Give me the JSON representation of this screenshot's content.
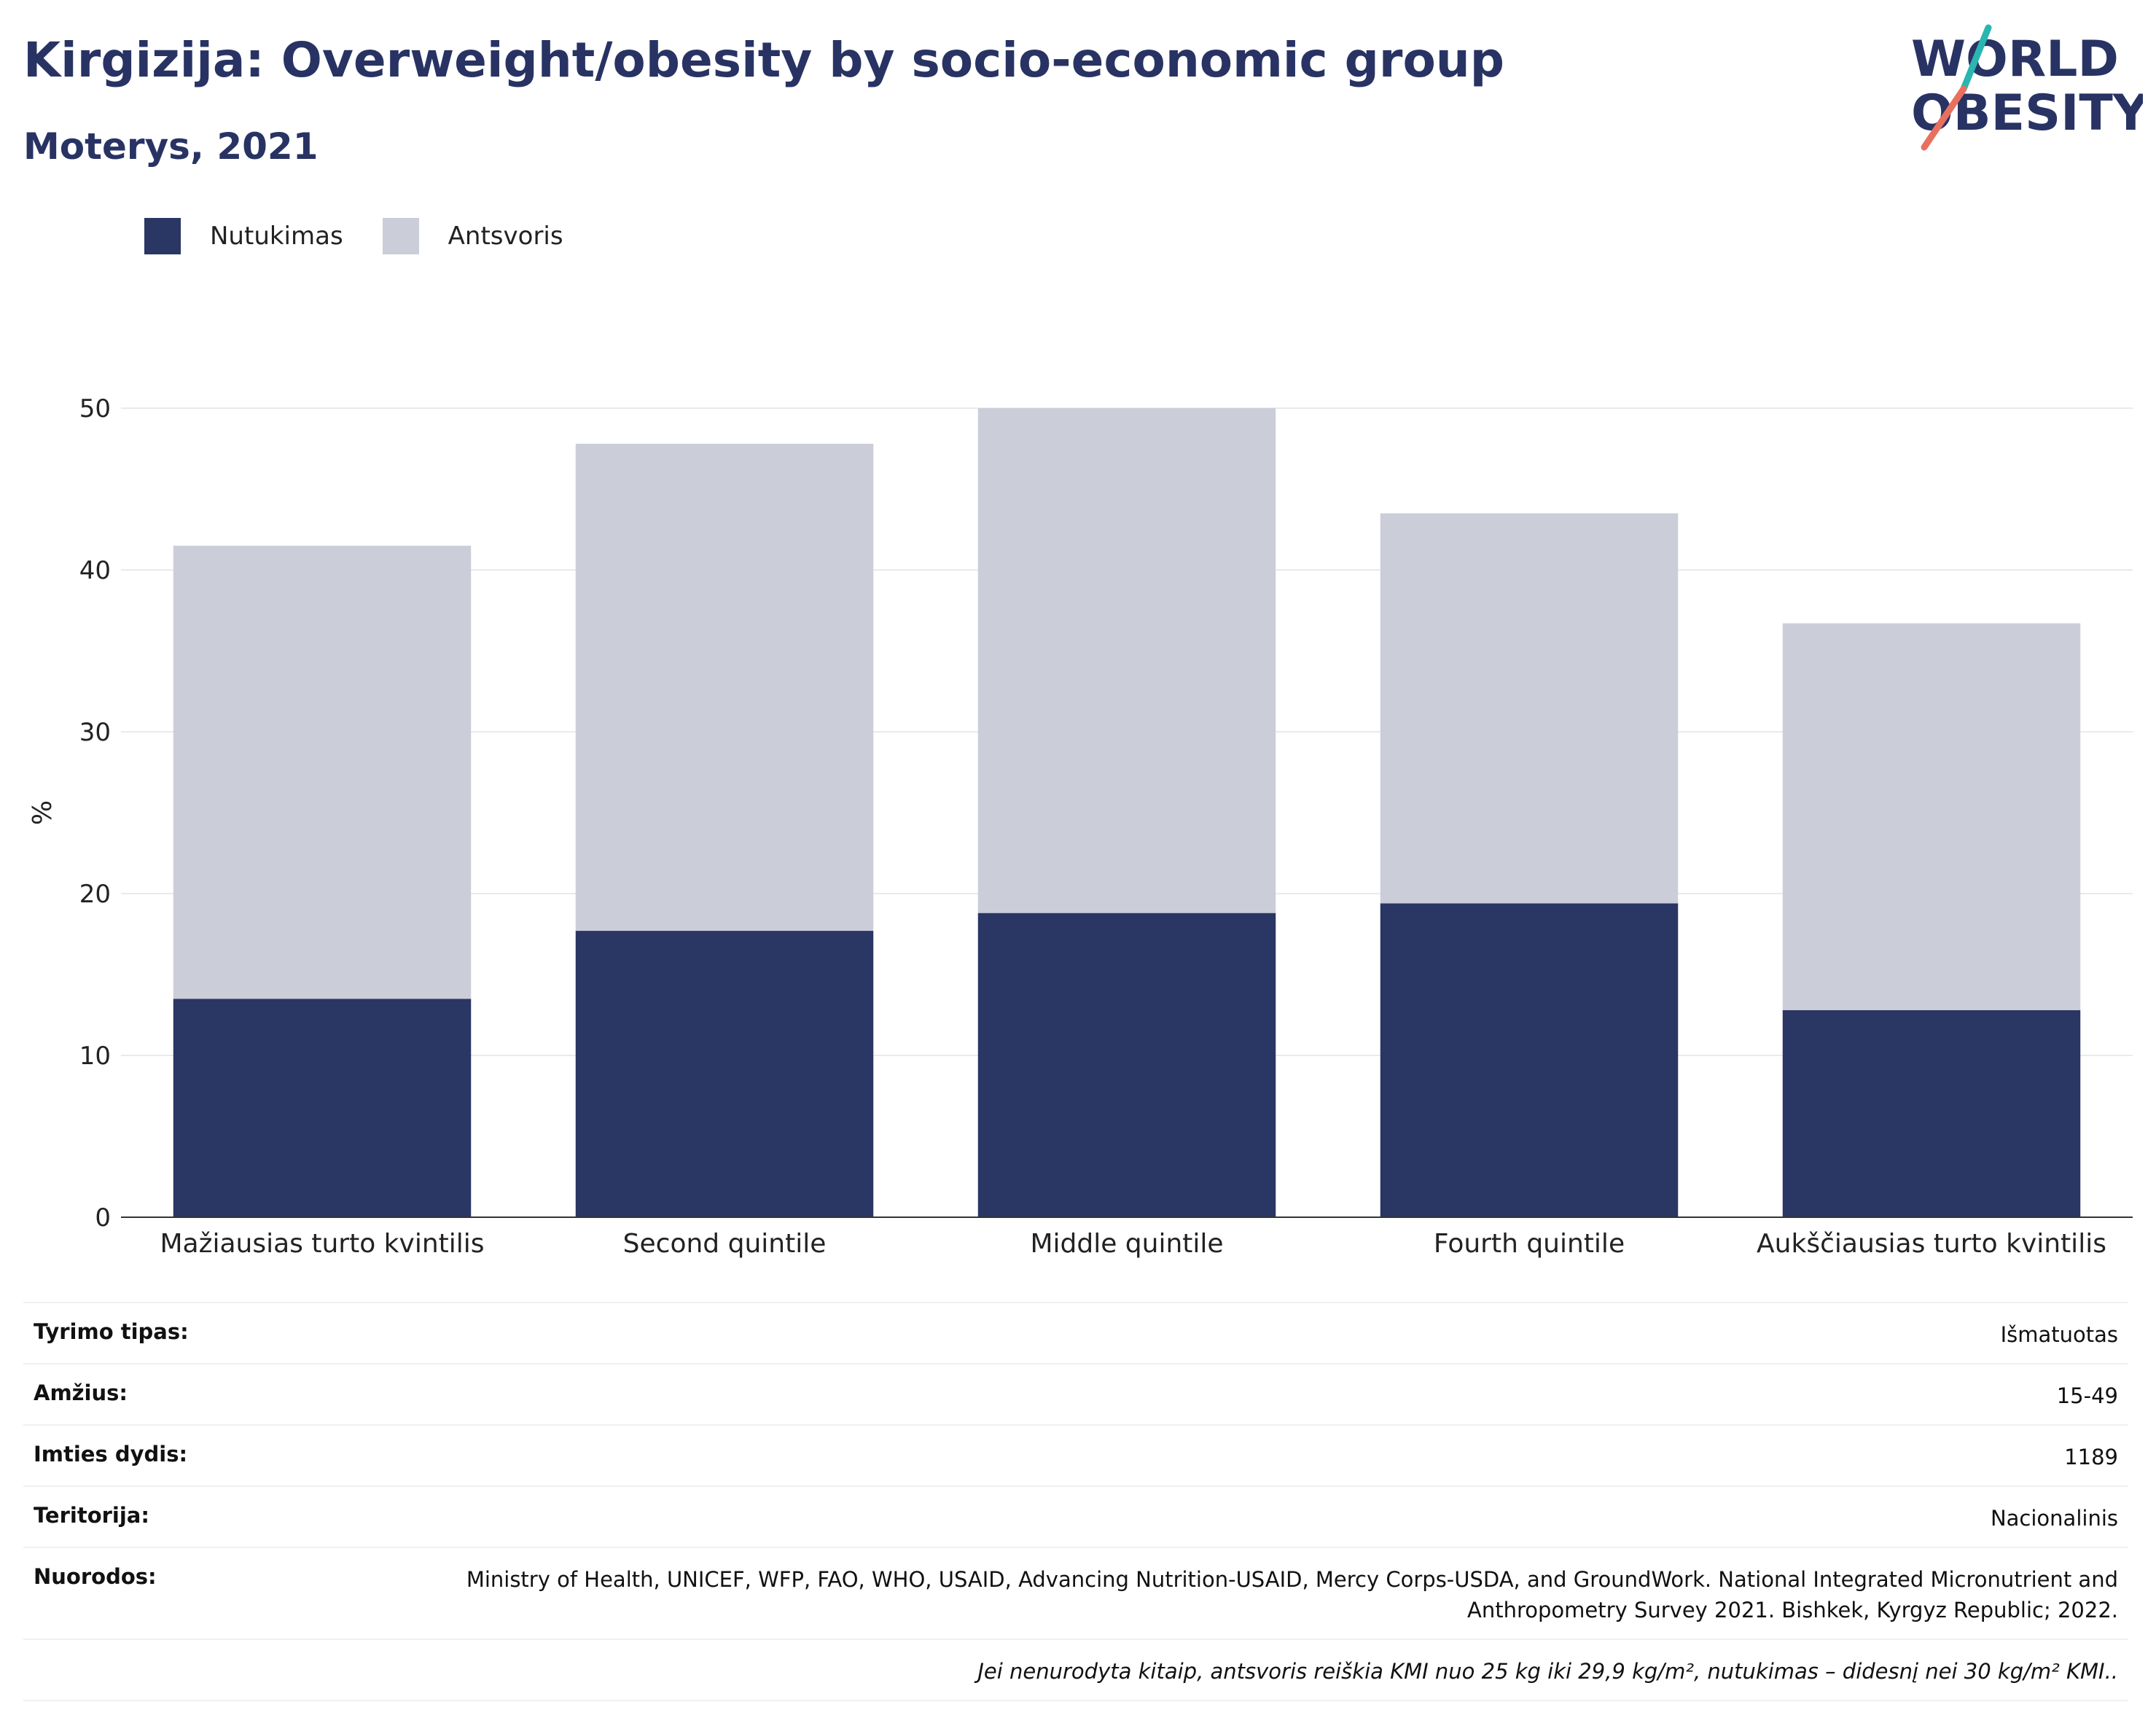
{
  "title": "Kirgizija: Overweight/obesity by socio-economic group",
  "subtitle": "Moterys, 2021",
  "logo": {
    "line1": "WORLD",
    "line2": "OBESITY",
    "colors": {
      "text": "#283364",
      "slash_top": "#2ab5b0",
      "slash_bottom": "#e8705f"
    }
  },
  "legend": [
    {
      "label": "Nutukimas",
      "color": "#2a3663"
    },
    {
      "label": "Antsvoris",
      "color": "#cbcdd9"
    }
  ],
  "chart_data": {
    "type": "bar",
    "stacked": true,
    "categories": [
      "Mažiausias turto kvintilis",
      "Second quintile",
      "Middle quintile",
      "Fourth quintile",
      "Aukščiausias turto kvintilis"
    ],
    "series": [
      {
        "name": "Nutukimas",
        "color": "#2a3663",
        "values": [
          13.5,
          17.7,
          18.8,
          19.4,
          12.8
        ]
      },
      {
        "name": "Antsvoris",
        "color": "#cbcdd9",
        "values": [
          28.0,
          30.1,
          31.2,
          24.1,
          23.9
        ]
      }
    ],
    "ylabel": "%",
    "ylim": [
      0,
      50
    ],
    "yticks": [
      0,
      10,
      20,
      30,
      40,
      50
    ],
    "grid": true
  },
  "info": [
    {
      "label": "Tyrimo tipas:",
      "value": "Išmatuotas"
    },
    {
      "label": "Amžius:",
      "value": "15-49"
    },
    {
      "label": "Imties dydis:",
      "value": "1189"
    },
    {
      "label": "Teritorija:",
      "value": "Nacionalinis"
    },
    {
      "label": "Nuorodos:",
      "value": "Ministry of Health, UNICEF, WFP, FAO, WHO, USAID, Advancing Nutrition-USAID, Mercy Corps-USDA, and GroundWork. National Integrated Micronutrient and Anthropometry Survey 2021. Bishkek, Kyrgyz Republic; 2022."
    }
  ],
  "note": "Jei nenurodyta kitaip, antsvoris reiškia KMI nuo 25 kg iki 29,9 kg/m², nutukimas – didesnį nei 30 kg/m² KMI.."
}
